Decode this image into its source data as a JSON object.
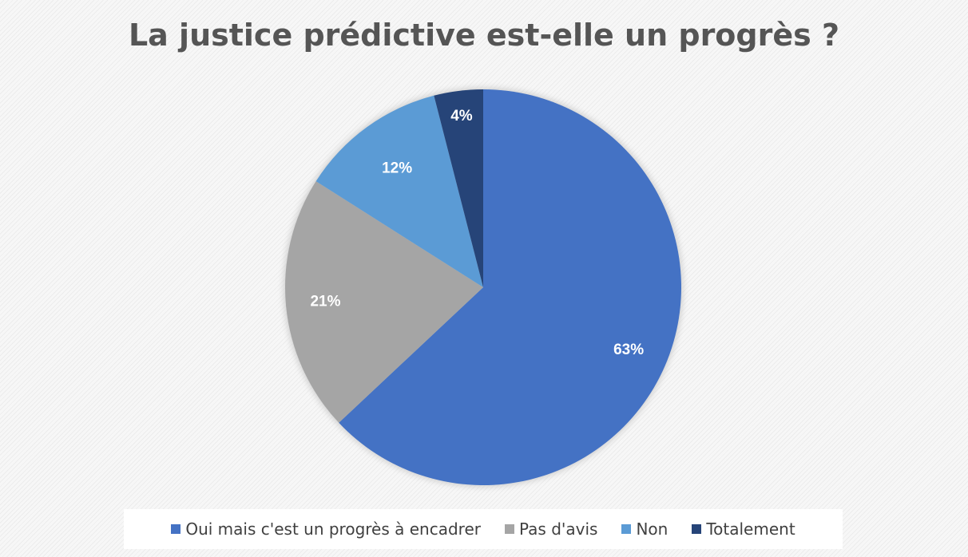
{
  "chart_data": {
    "type": "pie",
    "title": "La justice prédictive est-elle un progrès ?",
    "categories": [
      "Oui mais c'est un progrès à encadrer",
      "Pas d'avis",
      "Non",
      "Totalement"
    ],
    "values": [
      63,
      21,
      12,
      4
    ],
    "data_labels": [
      "63%",
      "21%",
      "12%",
      "4%"
    ],
    "colors": [
      "#4472C4",
      "#A5A5A5",
      "#5B9BD5",
      "#264478"
    ],
    "start_angle_deg": 0,
    "direction": "clockwise",
    "legend_position": "bottom"
  }
}
